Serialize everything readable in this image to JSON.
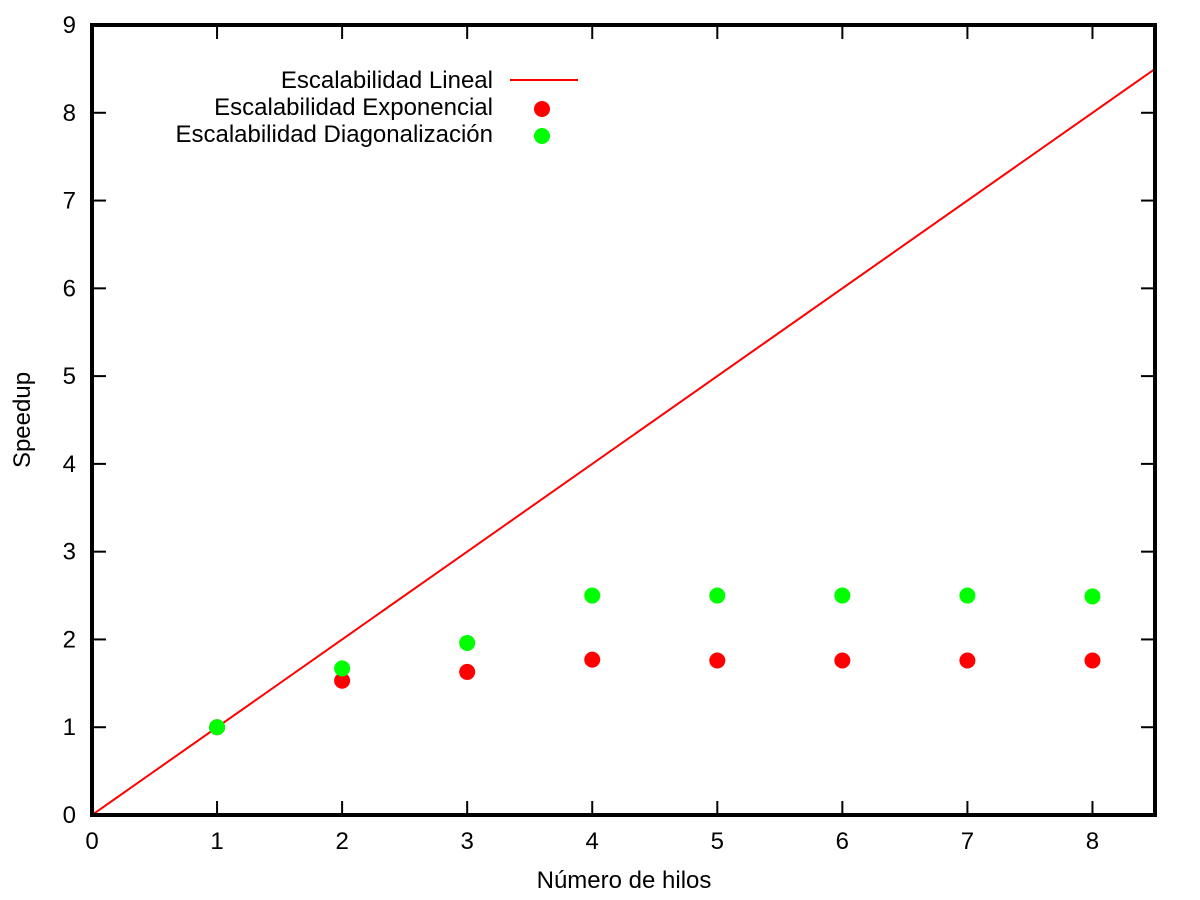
{
  "chart_data": {
    "type": "scatter",
    "title": "",
    "xlabel": "Número de hilos",
    "ylabel": "Speedup",
    "xlim": [
      0,
      8.5
    ],
    "ylim": [
      0,
      9
    ],
    "xticks": [
      0,
      1,
      2,
      3,
      4,
      5,
      6,
      7,
      8
    ],
    "yticks": [
      0,
      1,
      2,
      3,
      4,
      5,
      6,
      7,
      8,
      9
    ],
    "grid": false,
    "legend_position": "top-left",
    "series": [
      {
        "name": "Escalabilidad Lineal",
        "type": "line",
        "color": "#ff0000",
        "x": [
          0,
          8.5
        ],
        "y": [
          0,
          8.5
        ]
      },
      {
        "name": "Escalabilidad Exponencial",
        "type": "scatter",
        "color": "#ff0000",
        "x": [
          1,
          2,
          3,
          4,
          5,
          6,
          7,
          8
        ],
        "y": [
          1.0,
          1.53,
          1.63,
          1.77,
          1.76,
          1.76,
          1.76,
          1.76
        ]
      },
      {
        "name": "Escalabilidad Diagonalización",
        "type": "scatter",
        "color": "#00ff00",
        "x": [
          1,
          2,
          3,
          4,
          5,
          6,
          7,
          8
        ],
        "y": [
          1.0,
          1.67,
          1.96,
          2.5,
          2.5,
          2.5,
          2.5,
          2.49
        ]
      }
    ]
  }
}
